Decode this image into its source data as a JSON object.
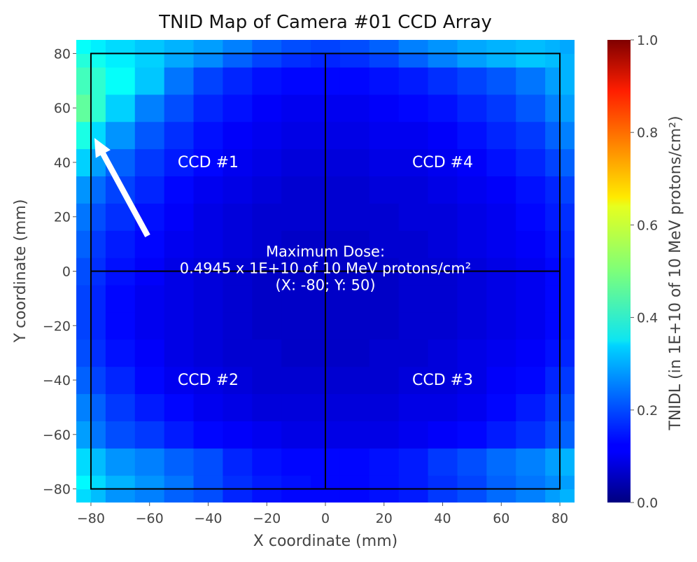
{
  "chart_data": {
    "type": "heatmap",
    "title": "TNID Map of Camera #01 CCD Array",
    "xlabel": "X coordinate (mm)",
    "ylabel": "Y coordinate (mm)",
    "colorbar_label": "TNIDL (in 1E+10 of 10 MeV protons/cm²)",
    "xlim": [
      -85,
      85
    ],
    "ylim": [
      -85,
      85
    ],
    "clim": [
      0.0,
      1.0
    ],
    "colormap": "jet",
    "x_ticks": [
      -80,
      -60,
      -40,
      -20,
      0,
      20,
      40,
      60,
      80
    ],
    "y_ticks": [
      -80,
      -60,
      -40,
      -20,
      0,
      20,
      40,
      60,
      80
    ],
    "x_tick_labels": [
      "−80",
      "−60",
      "−40",
      "−20",
      "0",
      "20",
      "40",
      "60",
      "80"
    ],
    "y_tick_labels": [
      "−80",
      "−60",
      "−40",
      "−20",
      "0",
      "20",
      "40",
      "60",
      "80"
    ],
    "colorbar_ticks": [
      0.0,
      0.2,
      0.4,
      0.6,
      0.8,
      1.0
    ],
    "colorbar_tick_labels": [
      "0.0",
      "0.2",
      "0.4",
      "0.6",
      "0.8",
      "1.0"
    ],
    "cell_size_mm": 10,
    "grid_x_edges": [
      -85,
      -80,
      -75,
      -65,
      -55,
      -45,
      -35,
      -25,
      -15,
      -5,
      5,
      15,
      25,
      35,
      45,
      55,
      65,
      75,
      80,
      85
    ],
    "grid_y_edges": [
      -85,
      -80,
      -75,
      -65,
      -55,
      -45,
      -35,
      -25,
      -15,
      -5,
      5,
      15,
      25,
      35,
      45,
      55,
      65,
      75,
      80,
      85
    ],
    "grid_values": [
      [
        0.34,
        0.31,
        0.27,
        0.25,
        0.22,
        0.2,
        0.16,
        0.14,
        0.13,
        0.13,
        0.13,
        0.14,
        0.15,
        0.18,
        0.2,
        0.23,
        0.25,
        0.28,
        0.3
      ],
      [
        0.37,
        0.34,
        0.3,
        0.27,
        0.24,
        0.2,
        0.17,
        0.15,
        0.14,
        0.13,
        0.13,
        0.14,
        0.15,
        0.17,
        0.19,
        0.22,
        0.24,
        0.26,
        0.28
      ],
      [
        0.34,
        0.31,
        0.27,
        0.25,
        0.22,
        0.2,
        0.16,
        0.14,
        0.13,
        0.13,
        0.13,
        0.14,
        0.15,
        0.18,
        0.2,
        0.23,
        0.25,
        0.28,
        0.3
      ],
      [
        0.28,
        0.24,
        0.2,
        0.18,
        0.15,
        0.13,
        0.12,
        0.11,
        0.1,
        0.1,
        0.1,
        0.1,
        0.11,
        0.12,
        0.13,
        0.15,
        0.17,
        0.2,
        0.22
      ],
      [
        0.25,
        0.22,
        0.18,
        0.15,
        0.13,
        0.11,
        0.1,
        0.09,
        0.09,
        0.09,
        0.09,
        0.09,
        0.1,
        0.1,
        0.11,
        0.13,
        0.15,
        0.18,
        0.2
      ],
      [
        0.22,
        0.19,
        0.16,
        0.13,
        0.11,
        0.1,
        0.09,
        0.08,
        0.08,
        0.08,
        0.08,
        0.08,
        0.09,
        0.09,
        0.1,
        0.12,
        0.13,
        0.16,
        0.18
      ],
      [
        0.2,
        0.17,
        0.14,
        0.12,
        0.1,
        0.09,
        0.08,
        0.08,
        0.07,
        0.07,
        0.07,
        0.08,
        0.08,
        0.09,
        0.1,
        0.11,
        0.12,
        0.14,
        0.16
      ],
      [
        0.19,
        0.16,
        0.13,
        0.11,
        0.1,
        0.09,
        0.08,
        0.07,
        0.07,
        0.07,
        0.07,
        0.07,
        0.08,
        0.08,
        0.09,
        0.1,
        0.11,
        0.13,
        0.15
      ],
      [
        0.19,
        0.16,
        0.13,
        0.11,
        0.1,
        0.09,
        0.08,
        0.07,
        0.07,
        0.07,
        0.07,
        0.07,
        0.08,
        0.08,
        0.09,
        0.1,
        0.11,
        0.13,
        0.15
      ],
      [
        0.2,
        0.17,
        0.14,
        0.12,
        0.1,
        0.09,
        0.08,
        0.07,
        0.07,
        0.07,
        0.07,
        0.07,
        0.08,
        0.08,
        0.09,
        0.1,
        0.11,
        0.13,
        0.15
      ],
      [
        0.22,
        0.18,
        0.15,
        0.13,
        0.11,
        0.1,
        0.09,
        0.08,
        0.07,
        0.07,
        0.07,
        0.08,
        0.08,
        0.09,
        0.1,
        0.11,
        0.12,
        0.14,
        0.16
      ],
      [
        0.24,
        0.2,
        0.17,
        0.14,
        0.12,
        0.1,
        0.09,
        0.08,
        0.08,
        0.08,
        0.08,
        0.08,
        0.09,
        0.09,
        0.1,
        0.11,
        0.13,
        0.15,
        0.17
      ],
      [
        0.27,
        0.23,
        0.19,
        0.16,
        0.13,
        0.11,
        0.1,
        0.09,
        0.08,
        0.08,
        0.08,
        0.09,
        0.09,
        0.1,
        0.11,
        0.12,
        0.14,
        0.16,
        0.19
      ],
      [
        0.33,
        0.28,
        0.22,
        0.18,
        0.15,
        0.13,
        0.11,
        0.1,
        0.09,
        0.09,
        0.09,
        0.1,
        0.1,
        0.11,
        0.12,
        0.14,
        0.16,
        0.19,
        0.22
      ],
      [
        0.4,
        0.34,
        0.27,
        0.21,
        0.17,
        0.14,
        0.12,
        0.11,
        0.1,
        0.1,
        0.1,
        0.11,
        0.11,
        0.12,
        0.14,
        0.16,
        0.18,
        0.22,
        0.25
      ],
      [
        0.47,
        0.42,
        0.33,
        0.25,
        0.2,
        0.16,
        0.14,
        0.12,
        0.11,
        0.11,
        0.11,
        0.12,
        0.13,
        0.14,
        0.16,
        0.18,
        0.21,
        0.25,
        0.28
      ],
      [
        0.44,
        0.42,
        0.38,
        0.32,
        0.24,
        0.19,
        0.16,
        0.14,
        0.13,
        0.13,
        0.13,
        0.14,
        0.15,
        0.17,
        0.19,
        0.21,
        0.24,
        0.28,
        0.3
      ],
      [
        0.41,
        0.39,
        0.36,
        0.33,
        0.29,
        0.26,
        0.22,
        0.19,
        0.17,
        0.16,
        0.17,
        0.19,
        0.22,
        0.25,
        0.28,
        0.3,
        0.32,
        0.31,
        0.3
      ],
      [
        0.38,
        0.36,
        0.34,
        0.32,
        0.3,
        0.28,
        0.25,
        0.22,
        0.2,
        0.19,
        0.2,
        0.22,
        0.25,
        0.27,
        0.29,
        0.3,
        0.31,
        0.3,
        0.29
      ]
    ],
    "ccd_boundary": {
      "x": [
        -80,
        80
      ],
      "y": [
        -80,
        80
      ],
      "divider_x": 0,
      "divider_y": 0
    },
    "ccd_labels": [
      {
        "text": "CCD #1",
        "x": -40,
        "y": 40
      },
      {
        "text": "CCD #4",
        "x": 40,
        "y": 40
      },
      {
        "text": "CCD #2",
        "x": -40,
        "y": -40
      },
      {
        "text": "CCD #3",
        "x": 40,
        "y": -40
      }
    ],
    "annotation": {
      "lines": [
        "Maximum Dose:",
        "0.4945 x 1E+10 of 10 MeV protons/cm²",
        "(X: -80; Y: 50)"
      ],
      "max_value": 0.4945,
      "max_x": -80,
      "max_y": 50
    }
  }
}
